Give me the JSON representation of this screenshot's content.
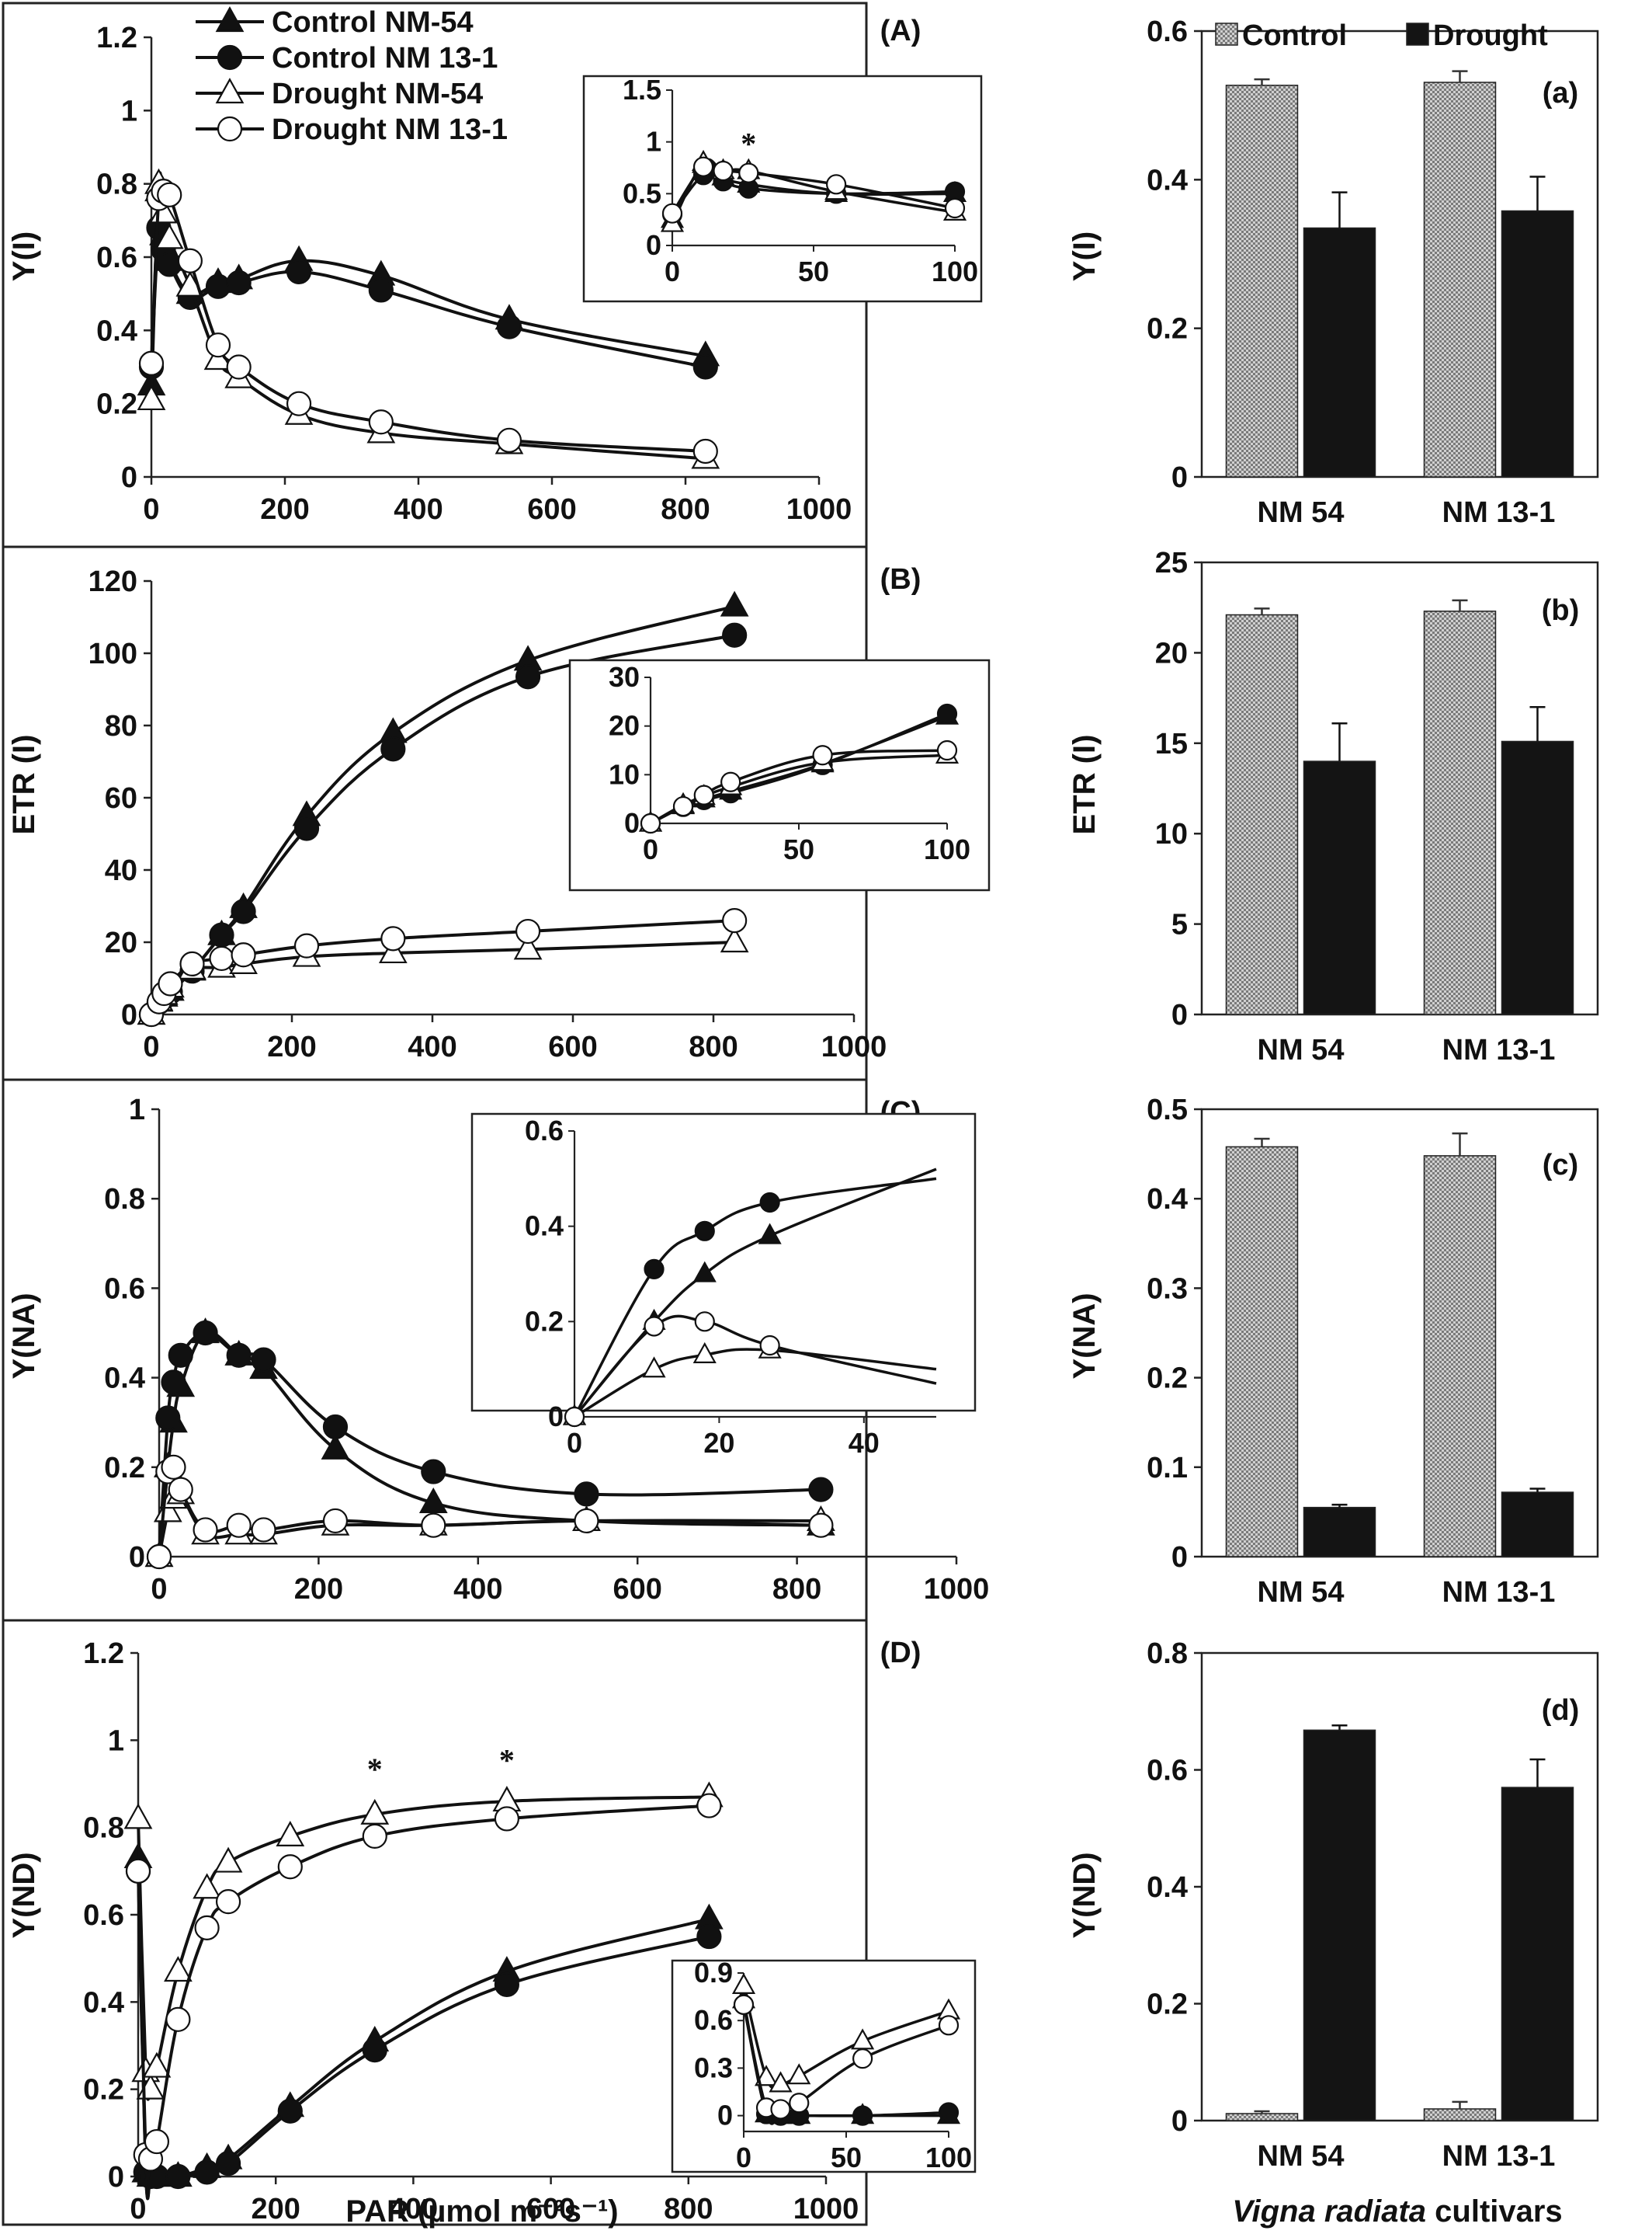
{
  "legend": {
    "control_nm54": "Control NM-54",
    "control_nm131": "Control NM 13-1",
    "drought_nm54": "Drought NM-54",
    "drought_nm131": "Drought NM 13-1"
  },
  "bar_legend": {
    "control": "Control",
    "drought": "Drought"
  },
  "colors": {
    "line": "#111111",
    "error": "#777777",
    "control_fill": "#bdbdbd",
    "drought_fill": "#141414"
  },
  "chart_data": [
    {
      "id": "A",
      "type": "line",
      "panel_label": "(A)",
      "ylabel": "Y(I)",
      "xlabel": "",
      "xlim": [
        0,
        1000
      ],
      "ylim": [
        0,
        1.2
      ],
      "xticks": [
        "0",
        "200",
        "400",
        "600",
        "800",
        "1000"
      ],
      "yticks": [
        "0",
        "0.2",
        "0.4",
        "0.6",
        "0.8",
        "1",
        "1.2"
      ],
      "x": [
        0,
        11,
        18,
        27,
        58,
        100,
        131,
        221,
        344,
        536,
        830
      ],
      "series": [
        {
          "name": "Control NM-54",
          "marker": "tri-filled",
          "values": [
            0.25,
            0.78,
            0.66,
            0.59,
            0.5,
            0.53,
            0.54,
            0.59,
            0.55,
            0.43,
            0.33
          ]
        },
        {
          "name": "Control NM 13-1",
          "marker": "circ-filled",
          "values": [
            0.3,
            0.68,
            0.62,
            0.58,
            0.49,
            0.52,
            0.53,
            0.56,
            0.51,
            0.41,
            0.3
          ]
        },
        {
          "name": "Drought NM-54",
          "marker": "tri-open",
          "values": [
            0.21,
            0.8,
            0.72,
            0.65,
            0.52,
            0.32,
            0.27,
            0.17,
            0.12,
            0.09,
            0.05
          ]
        },
        {
          "name": "Drought NM 13-1",
          "marker": "circ-open",
          "values": [
            0.31,
            0.76,
            0.78,
            0.77,
            0.59,
            0.36,
            0.3,
            0.2,
            0.15,
            0.1,
            0.07
          ]
        }
      ],
      "inset": {
        "xlim": [
          0,
          100
        ],
        "ylim": [
          0,
          1.5
        ],
        "xticks": [
          "0",
          "50",
          "100"
        ],
        "yticks": [
          "0",
          "0.5",
          "1",
          "1.5"
        ],
        "x": [
          0,
          11,
          18,
          27,
          58,
          100
        ],
        "annotations": [
          {
            "text": "*",
            "x": 27,
            "y": 0.88
          }
        ],
        "series": [
          {
            "name": "Control NM-54",
            "marker": "tri-filled",
            "values": [
              0.25,
              0.78,
              0.66,
              0.59,
              0.5,
              0.5
            ]
          },
          {
            "name": "Control NM 13-1",
            "marker": "circ-filled",
            "values": [
              0.3,
              0.68,
              0.62,
              0.55,
              0.5,
              0.52
            ]
          },
          {
            "name": "Drought NM-54",
            "marker": "tri-open",
            "values": [
              0.21,
              0.8,
              0.72,
              0.72,
              0.52,
              0.32
            ]
          },
          {
            "name": "Drought NM 13-1",
            "marker": "circ-open",
            "values": [
              0.31,
              0.76,
              0.72,
              0.7,
              0.59,
              0.36
            ]
          }
        ]
      }
    },
    {
      "id": "B",
      "type": "line",
      "panel_label": "(B)",
      "ylabel": "ETR (I)",
      "xlabel": "",
      "xlim": [
        0,
        1000
      ],
      "ylim": [
        0,
        120
      ],
      "xticks": [
        "0",
        "200",
        "400",
        "600",
        "800",
        "1000"
      ],
      "yticks": [
        "0",
        "20",
        "40",
        "60",
        "80",
        "100",
        "120"
      ],
      "x": [
        0,
        11,
        18,
        27,
        58,
        100,
        131,
        221,
        344,
        536,
        830
      ],
      "series": [
        {
          "name": "Control NM-54",
          "marker": "tri-filled",
          "values": [
            0,
            3.6,
            5.0,
            6.6,
            12.2,
            22.0,
            29.5,
            55.0,
            78.0,
            98.0,
            113.0
          ]
        },
        {
          "name": "Control NM 13-1",
          "marker": "circ-filled",
          "values": [
            0,
            3.4,
            4.8,
            6.2,
            12.0,
            22.0,
            28.5,
            51.5,
            73.5,
            93.5,
            105.0
          ]
        },
        {
          "name": "Drought NM-54",
          "marker": "tri-open",
          "values": [
            0,
            3.8,
            5.5,
            7.5,
            12.5,
            13.0,
            14.0,
            16.0,
            17.0,
            18.0,
            20.0
          ]
        },
        {
          "name": "Drought NM 13-1",
          "marker": "circ-open",
          "values": [
            0,
            3.5,
            5.8,
            8.5,
            14.0,
            15.5,
            16.5,
            19.0,
            21.0,
            23.0,
            26.0
          ]
        }
      ],
      "inset": {
        "xlim": [
          0,
          100
        ],
        "ylim": [
          0,
          30
        ],
        "xticks": [
          "0",
          "50",
          "100"
        ],
        "yticks": [
          "0",
          "10",
          "20",
          "30"
        ],
        "x": [
          0,
          11,
          18,
          27,
          58,
          100
        ],
        "series": [
          {
            "name": "Control NM-54",
            "marker": "tri-filled",
            "values": [
              0,
              3.6,
              5.0,
              6.6,
              12.2,
              22.0
            ]
          },
          {
            "name": "Control NM 13-1",
            "marker": "circ-filled",
            "values": [
              0,
              3.4,
              4.8,
              6.2,
              12.0,
              22.5
            ]
          },
          {
            "name": "Drought NM-54",
            "marker": "tri-open",
            "values": [
              0,
              3.8,
              5.5,
              7.5,
              12.5,
              14.0
            ]
          },
          {
            "name": "Drought NM 13-1",
            "marker": "circ-open",
            "values": [
              0,
              3.5,
              5.8,
              8.5,
              14.0,
              15.0
            ]
          }
        ]
      }
    },
    {
      "id": "C",
      "type": "line",
      "panel_label": "(C)",
      "ylabel": "Y(NA)",
      "xlabel": "",
      "xlim": [
        0,
        1000
      ],
      "ylim": [
        0,
        1
      ],
      "xticks": [
        "0",
        "200",
        "400",
        "600",
        "800",
        "1000"
      ],
      "yticks": [
        "0",
        "0.2",
        "0.4",
        "0.6",
        "0.8",
        "1"
      ],
      "x": [
        0,
        11,
        18,
        27,
        58,
        100,
        131,
        221,
        344,
        536,
        830
      ],
      "series": [
        {
          "name": "Control NM-54",
          "marker": "tri-filled",
          "values": [
            0,
            0.2,
            0.3,
            0.38,
            0.5,
            0.45,
            0.42,
            0.24,
            0.12,
            0.08,
            0.07
          ]
        },
        {
          "name": "Control NM 13-1",
          "marker": "circ-filled",
          "values": [
            0,
            0.31,
            0.39,
            0.45,
            0.5,
            0.45,
            0.44,
            0.29,
            0.19,
            0.14,
            0.15
          ]
        },
        {
          "name": "Drought NM-54",
          "marker": "tri-open",
          "values": [
            0,
            0.1,
            0.13,
            0.14,
            0.05,
            0.05,
            0.05,
            0.07,
            0.07,
            0.08,
            0.08
          ]
        },
        {
          "name": "Drought NM 13-1",
          "marker": "circ-open",
          "values": [
            0,
            0.19,
            0.2,
            0.15,
            0.06,
            0.07,
            0.06,
            0.08,
            0.07,
            0.08,
            0.07
          ]
        }
      ],
      "inset": {
        "xlim": [
          0,
          50
        ],
        "ylim": [
          0,
          0.6
        ],
        "xticks": [
          "0",
          "20",
          "40"
        ],
        "yticks": [
          "0",
          "0.2",
          "0.4",
          "0.6"
        ],
        "x": [
          0,
          11,
          18,
          27
        ],
        "series": [
          {
            "name": "Control NM-54",
            "marker": "tri-filled",
            "values": [
              0,
              0.2,
              0.3,
              0.38
            ]
          },
          {
            "name": "Control NM 13-1",
            "marker": "circ-filled",
            "values": [
              0,
              0.31,
              0.39,
              0.45
            ]
          },
          {
            "name": "Drought NM-54",
            "marker": "tri-open",
            "values": [
              0,
              0.1,
              0.13,
              0.14
            ]
          },
          {
            "name": "Drought NM 13-1",
            "marker": "circ-open",
            "values": [
              0,
              0.19,
              0.2,
              0.15
            ]
          }
        ]
      }
    },
    {
      "id": "D",
      "type": "line",
      "panel_label": "(D)",
      "ylabel": "Y(ND)",
      "xlabel": "PAR (µmol m⁻²s⁻¹)",
      "xlim": [
        0,
        1000
      ],
      "ylim": [
        0,
        1.2
      ],
      "xticks": [
        "0",
        "200",
        "400",
        "600",
        "800",
        "1000"
      ],
      "yticks": [
        "0",
        "0.2",
        "0.4",
        "0.6",
        "0.8",
        "1",
        "1.2"
      ],
      "x": [
        0,
        11,
        18,
        27,
        58,
        100,
        131,
        221,
        344,
        536,
        830
      ],
      "annotations": [
        {
          "text": "*",
          "x": 344,
          "y": 0.91
        },
        {
          "text": "*",
          "x": 536,
          "y": 0.93
        }
      ],
      "series": [
        {
          "name": "Control NM-54",
          "marker": "tri-filled",
          "values": [
            0.73,
            0.01,
            0.0,
            0.0,
            0.0,
            0.02,
            0.04,
            0.16,
            0.31,
            0.47,
            0.59
          ]
        },
        {
          "name": "Control NM 13-1",
          "marker": "circ-filled",
          "values": [
            0.7,
            0.01,
            0.0,
            0.0,
            0.0,
            0.01,
            0.03,
            0.15,
            0.29,
            0.44,
            0.55
          ]
        },
        {
          "name": "Drought NM-54",
          "marker": "tri-open",
          "values": [
            0.82,
            0.24,
            0.2,
            0.25,
            0.47,
            0.66,
            0.72,
            0.78,
            0.83,
            0.86,
            0.87
          ]
        },
        {
          "name": "Drought NM 13-1",
          "marker": "circ-open",
          "values": [
            0.7,
            0.05,
            0.04,
            0.08,
            0.36,
            0.57,
            0.63,
            0.71,
            0.78,
            0.82,
            0.85
          ]
        }
      ],
      "inset": {
        "xlim": [
          0,
          100
        ],
        "ylim": [
          -0.1,
          0.9
        ],
        "xticks": [
          "0",
          "50",
          "100"
        ],
        "yticks": [
          "0",
          "0.3",
          "0.6",
          "0.9"
        ],
        "x": [
          0,
          11,
          18,
          27,
          58,
          100
        ],
        "series": [
          {
            "name": "Control NM-54",
            "marker": "tri-filled",
            "values": [
              0.73,
              0.01,
              0.0,
              0.0,
              0.0,
              0.0
            ]
          },
          {
            "name": "Control NM 13-1",
            "marker": "circ-filled",
            "values": [
              0.7,
              0.01,
              0.0,
              0.0,
              0.0,
              0.02
            ]
          },
          {
            "name": "Drought NM-54",
            "marker": "tri-open",
            "values": [
              0.82,
              0.24,
              0.2,
              0.25,
              0.47,
              0.66
            ]
          },
          {
            "name": "Drought NM 13-1",
            "marker": "circ-open",
            "values": [
              0.7,
              0.05,
              0.04,
              0.08,
              0.36,
              0.57
            ]
          }
        ]
      }
    },
    {
      "id": "a",
      "type": "bar",
      "panel_label": "(a)",
      "ylabel": "Y(I)",
      "xlabel": "",
      "ylim": [
        0,
        0.6
      ],
      "yticks": [
        "0",
        "0.2",
        "0.4",
        "0.6"
      ],
      "categories": [
        "NM 54",
        "NM 13-1"
      ],
      "series": [
        {
          "name": "Control",
          "values": [
            0.527,
            0.531
          ],
          "errors": [
            0.008,
            0.015
          ]
        },
        {
          "name": "Drought",
          "values": [
            0.335,
            0.358
          ],
          "errors": [
            0.048,
            0.046
          ]
        }
      ]
    },
    {
      "id": "b",
      "type": "bar",
      "panel_label": "(b)",
      "ylabel": "ETR (I)",
      "xlabel": "",
      "ylim": [
        0,
        25
      ],
      "yticks": [
        "0",
        "5",
        "10",
        "15",
        "20",
        "25"
      ],
      "categories": [
        "NM 54",
        "NM 13-1"
      ],
      "series": [
        {
          "name": "Control",
          "values": [
            22.1,
            22.3
          ],
          "errors": [
            0.35,
            0.6
          ]
        },
        {
          "name": "Drought",
          "values": [
            14.0,
            15.1
          ],
          "errors": [
            2.1,
            1.9
          ]
        }
      ]
    },
    {
      "id": "c",
      "type": "bar",
      "panel_label": "(c)",
      "ylabel": "Y(NA)",
      "xlabel": "",
      "ylim": [
        0,
        0.5
      ],
      "yticks": [
        "0",
        "0.1",
        "0.2",
        "0.3",
        "0.4",
        "0.5"
      ],
      "categories": [
        "NM 54",
        "NM 13-1"
      ],
      "series": [
        {
          "name": "Control",
          "values": [
            0.458,
            0.448
          ],
          "errors": [
            0.009,
            0.025
          ]
        },
        {
          "name": "Drought",
          "values": [
            0.055,
            0.072
          ],
          "errors": [
            0.003,
            0.004
          ]
        }
      ]
    },
    {
      "id": "d",
      "type": "bar",
      "panel_label": "(d)",
      "ylabel": "Y(ND)",
      "xlabel": "",
      "xlabel_category": "Vigna radiata",
      "xlabel_rest": " cultivars",
      "ylim": [
        0,
        0.8
      ],
      "yticks": [
        "0",
        "0.2",
        "0.4",
        "0.6",
        "0.8"
      ],
      "categories": [
        "NM 54",
        "NM 13-1"
      ],
      "series": [
        {
          "name": "Control",
          "values": [
            0.012,
            0.02
          ],
          "errors": [
            0.004,
            0.012
          ]
        },
        {
          "name": "Drought",
          "values": [
            0.668,
            0.57
          ],
          "errors": [
            0.008,
            0.048
          ]
        }
      ]
    }
  ]
}
